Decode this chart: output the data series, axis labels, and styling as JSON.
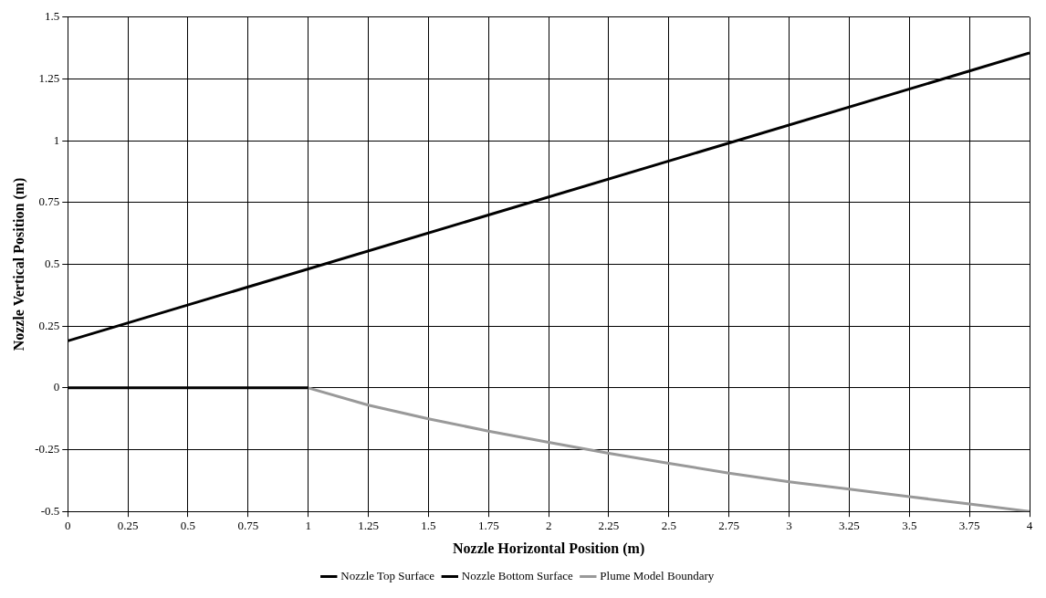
{
  "chart_data": {
    "type": "line",
    "xlabel": "Nozzle Horizontal Position (m)",
    "ylabel": "Nozzle Vertical Position (m)",
    "xlim": [
      0,
      4
    ],
    "xticks": [
      0,
      0.25,
      0.5,
      0.75,
      1,
      1.25,
      1.5,
      1.75,
      2,
      2.25,
      2.5,
      2.75,
      3,
      3.25,
      3.5,
      3.75,
      4
    ],
    "ylim": [
      -0.5,
      1.5
    ],
    "yticks": [
      -0.5,
      -0.25,
      0,
      0.25,
      0.5,
      0.75,
      1,
      1.25,
      1.5
    ],
    "grid": true,
    "legend": "bottom",
    "marker": "none",
    "line_style": "solid",
    "series": [
      {
        "name": "Nozzle Top Surface",
        "color": "#000000",
        "x": [
          0,
          4
        ],
        "values": [
          0.19,
          1.355
        ]
      },
      {
        "name": "Nozzle Bottom Surface",
        "color": "#000000",
        "x": [
          0,
          1
        ],
        "values": [
          0,
          0
        ]
      },
      {
        "name": "Plume Model Boundary",
        "color": "#999999",
        "x": [
          1,
          1.25,
          1.5,
          1.75,
          2,
          2.25,
          2.5,
          2.75,
          3,
          3.25,
          3.5,
          3.75,
          4
        ],
        "values": [
          0,
          -0.07,
          -0.125,
          -0.175,
          -0.22,
          -0.265,
          -0.305,
          -0.345,
          -0.38,
          -0.41,
          -0.44,
          -0.47,
          -0.5
        ]
      }
    ]
  }
}
